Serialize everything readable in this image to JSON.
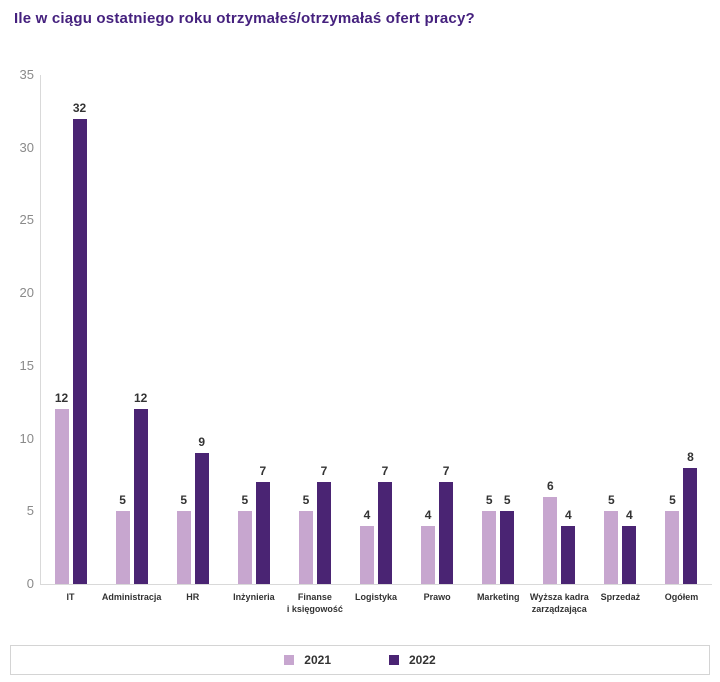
{
  "title": "Ile w ciągu ostatniego roku otrzymałeś/otrzymałaś ofert pracy?",
  "colors": {
    "title_text": "#45217E",
    "series_2021": "#C7A6CF",
    "series_2022": "#4A2473",
    "axis_text": "#8a8a8a",
    "label_text": "#333333",
    "axis_line": "#d9d9d9",
    "legend_border": "#d4d4d4"
  },
  "y_axis": {
    "ticks": [
      0,
      5,
      10,
      15,
      20,
      25,
      30,
      35
    ],
    "max": 35
  },
  "legend": {
    "items": [
      {
        "label": "2021",
        "color": "#C7A6CF"
      },
      {
        "label": "2022",
        "color": "#4A2473"
      }
    ]
  },
  "chart_data": {
    "type": "bar",
    "title": "Ile w ciągu ostatniego roku otrzymałeś/otrzymałaś ofert pracy?",
    "categories": [
      "IT",
      "Administracja",
      "HR",
      "Inżynieria",
      "Finanse\ni księgowość",
      "Logistyka",
      "Prawo",
      "Marketing",
      "Wyższa kadra\nzarządzająca",
      "Sprzedaż",
      "Ogółem"
    ],
    "series": [
      {
        "name": "2021",
        "values": [
          12,
          5,
          5,
          5,
          5,
          4,
          4,
          5,
          6,
          5,
          5
        ]
      },
      {
        "name": "2022",
        "values": [
          32,
          12,
          9,
          7,
          7,
          7,
          7,
          5,
          4,
          4,
          8
        ]
      }
    ],
    "xlabel": "",
    "ylabel": "",
    "ylim": [
      0,
      35
    ],
    "grid": false,
    "legend_position": "bottom"
  }
}
